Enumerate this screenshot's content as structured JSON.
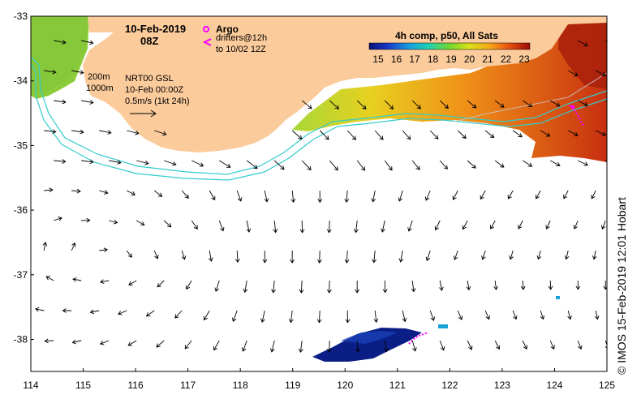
{
  "map": {
    "title_date": "10-Feb-2019",
    "title_time": "08Z",
    "legend_argo": "Argo",
    "legend_drifters_line1": "drifters@12h",
    "legend_drifters_line2": "to 10/02 12Z",
    "isobath_200": "200m",
    "isobath_1000": "1000m",
    "current_source": "NRT00 GSL",
    "current_date": "10-Feb 00:00Z",
    "vector_scale": "0.5m/s (1kt 24h)",
    "colorbar_title": "4h comp, p50, All Sats",
    "colorbar_ticks": [
      "15",
      "16",
      "17",
      "18",
      "19",
      "20",
      "21",
      "22",
      "23"
    ],
    "credit": "© IMOS 15-Feb-2019 12:01 Hobart",
    "x_ticks": [
      "114",
      "115",
      "116",
      "117",
      "118",
      "119",
      "120",
      "121",
      "122",
      "123",
      "124",
      "125"
    ],
    "y_ticks": [
      "-33",
      "-34",
      "-35",
      "-36",
      "-37",
      "-38"
    ],
    "colors": {
      "land": "#fbcb9b",
      "isobath": "#33cccc",
      "argo": "#ff00ff",
      "drifter": "#ff00ff",
      "sst_cold": "#0b1e86",
      "sst_warm": "#9a0e06"
    }
  }
}
